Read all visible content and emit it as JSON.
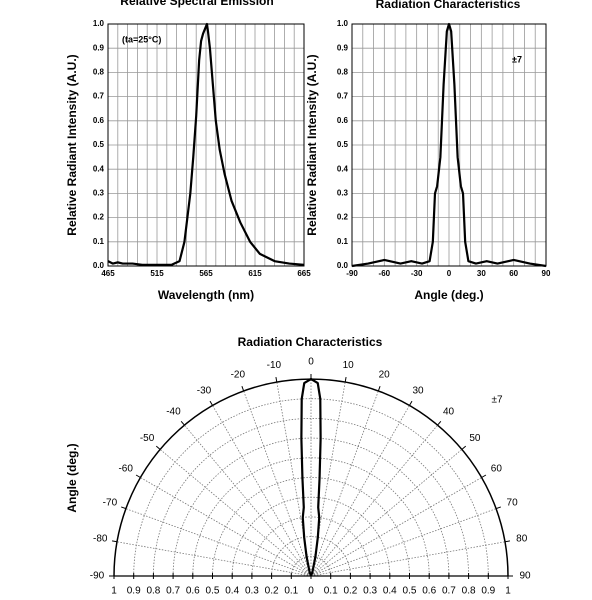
{
  "chart_data": [
    {
      "type": "line",
      "title": "Relative Spectral Emission",
      "xlabel": "Wavelength (nm)",
      "ylabel": "Relative Radiant Intensity (A.U.)",
      "annotation": "(ta=25°C)",
      "x": [
        465,
        470,
        475,
        480,
        490,
        500,
        510,
        520,
        530,
        538,
        543,
        546,
        549,
        552,
        555,
        558,
        560,
        562,
        564,
        566,
        567,
        569,
        572,
        575,
        579,
        584,
        591,
        600,
        610,
        620,
        635,
        650,
        665
      ],
      "values": [
        0.02,
        0.01,
        0.015,
        0.01,
        0.01,
        0.005,
        0.005,
        0.005,
        0.005,
        0.02,
        0.1,
        0.2,
        0.3,
        0.45,
        0.62,
        0.85,
        0.93,
        0.96,
        0.98,
        1.0,
        0.97,
        0.9,
        0.75,
        0.6,
        0.48,
        0.38,
        0.27,
        0.18,
        0.1,
        0.05,
        0.02,
        0.01,
        0.005
      ],
      "color": "#000000",
      "grid": true,
      "xlim": [
        465,
        665
      ],
      "xticks": [
        465,
        515,
        565,
        615,
        665
      ],
      "xminorticks": [
        475,
        485,
        495,
        505,
        525,
        535,
        545,
        555,
        575,
        585,
        595,
        605,
        625,
        635,
        645,
        655
      ],
      "ylim": [
        0,
        1
      ],
      "yticks": [
        {
          "value": 0,
          "label": "0.0"
        },
        0.1,
        0.2,
        0.3,
        0.4,
        0.5,
        0.6,
        0.7,
        0.8,
        0.9,
        {
          "value": 1,
          "label": "1.0"
        }
      ]
    },
    {
      "type": "line",
      "title": "Radiation Characteristics",
      "xlabel": "Angle (deg.)",
      "ylabel": "Relative Radiant Intensity (A.U.)",
      "annotation": "±7",
      "x": [
        -90,
        -75,
        -60,
        -45,
        -35,
        -25,
        -18,
        -15,
        -13,
        -11,
        -8,
        -5,
        -2,
        0,
        2,
        5,
        8,
        11,
        13,
        15,
        18,
        25,
        35,
        45,
        60,
        75,
        90
      ],
      "values": [
        0,
        0.01,
        0.025,
        0.01,
        0.02,
        0.01,
        0.02,
        0.1,
        0.3,
        0.33,
        0.45,
        0.75,
        0.97,
        1,
        0.97,
        0.75,
        0.45,
        0.33,
        0.3,
        0.1,
        0.02,
        0.01,
        0.02,
        0.01,
        0.025,
        0.01,
        0
      ],
      "color": "#000000",
      "grid": true,
      "xlim": [
        -90,
        90
      ],
      "xticks": [
        -90,
        -60,
        -30,
        0,
        30,
        60,
        90
      ],
      "xminorticks": [
        -80,
        -70,
        -50,
        -40,
        -20,
        -10,
        10,
        20,
        40,
        50,
        70,
        80
      ],
      "ylim": [
        0,
        1
      ],
      "yticks": [
        {
          "value": 0,
          "label": "0.0"
        },
        0.1,
        0.2,
        0.3,
        0.4,
        0.5,
        0.6,
        0.7,
        0.8,
        0.9,
        {
          "value": 1,
          "label": "1.0"
        }
      ]
    },
    {
      "type": "polar",
      "title": "Radiation Characteristics",
      "ylabel": "Angle (deg.)",
      "annotation": "±7",
      "theta": [
        -90,
        -20,
        -13,
        -10,
        -8,
        -6,
        -5,
        -4,
        -3,
        -2,
        0,
        2,
        3,
        4,
        5,
        6,
        8,
        10,
        13,
        20,
        90
      ],
      "values": [
        0,
        0.02,
        0.1,
        0.2,
        0.3,
        0.35,
        0.5,
        0.7,
        0.9,
        0.98,
        1,
        0.98,
        0.9,
        0.7,
        0.5,
        0.35,
        0.3,
        0.2,
        0.1,
        0.02,
        0
      ],
      "color": "#000000",
      "grid": true,
      "thetalim": [
        -90,
        90
      ],
      "thetaticks": [
        -90,
        -80,
        -70,
        -60,
        -50,
        -40,
        -30,
        -20,
        -10,
        0,
        10,
        20,
        30,
        40,
        50,
        60,
        70,
        80,
        90
      ],
      "rlim": [
        0,
        1
      ],
      "rticks": [
        0,
        0.1,
        0.2,
        0.3,
        0.4,
        0.5,
        0.6,
        0.7,
        0.8,
        0.9,
        1
      ]
    }
  ]
}
